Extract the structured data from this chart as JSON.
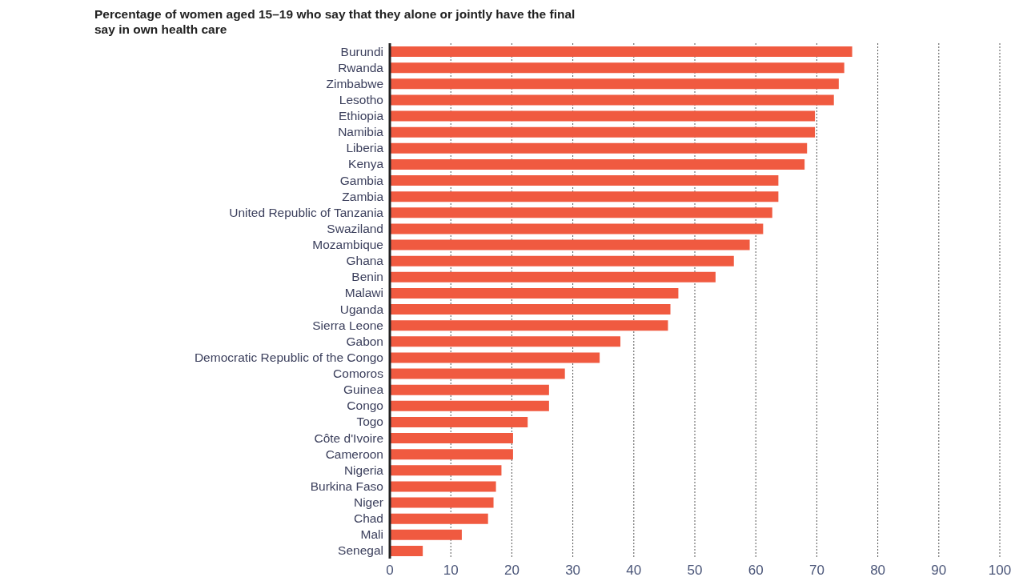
{
  "chart_data": {
    "type": "bar",
    "orientation": "horizontal",
    "title": "Percentage of women aged 15–19 who say that they alone or jointly have the final say in own health care",
    "categories": [
      "Burundi",
      "Rwanda",
      "Zimbabwe",
      "Lesotho",
      "Ethiopia",
      "Namibia",
      "Liberia",
      "Kenya",
      "Gambia",
      "Zambia",
      "United Republic of Tanzania",
      "Swaziland",
      "Mozambique",
      "Ghana",
      "Benin",
      "Malawi",
      "Uganda",
      "Sierra Leone",
      "Gabon",
      "Democratic Republic of the Congo",
      "Comoros",
      "Guinea",
      "Congo",
      "Togo",
      "Côte d'Ivoire",
      "Cameroon",
      "Nigeria",
      "Burkina Faso",
      "Niger",
      "Chad",
      "Mali",
      "Senegal"
    ],
    "values": [
      75.8,
      74.5,
      73.6,
      72.8,
      69.7,
      69.7,
      68.4,
      68.0,
      63.7,
      63.7,
      62.7,
      61.2,
      59.0,
      56.4,
      53.4,
      47.3,
      46.0,
      45.6,
      37.8,
      34.4,
      28.7,
      26.1,
      26.1,
      22.6,
      20.2,
      20.2,
      18.3,
      17.4,
      17.0,
      16.1,
      11.8,
      5.4
    ],
    "color": "#f05a40",
    "xlim": [
      0,
      100
    ],
    "xticks": [
      0,
      10,
      20,
      30,
      40,
      50,
      60,
      70,
      80,
      90,
      100
    ],
    "grid": "x"
  }
}
